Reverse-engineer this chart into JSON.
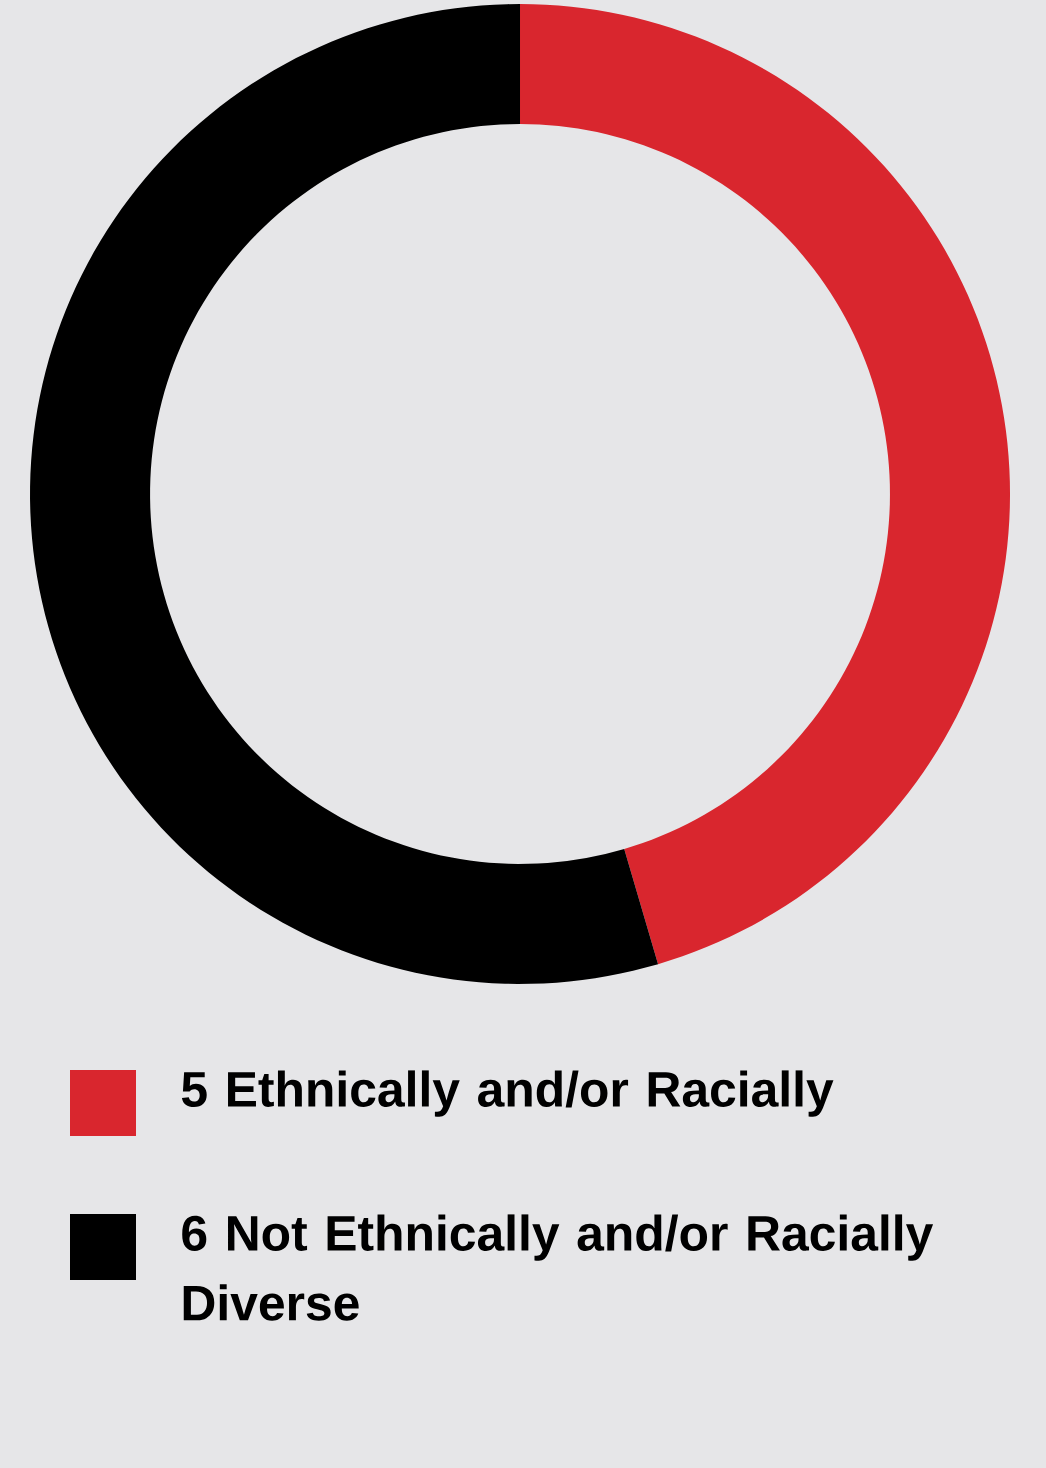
{
  "chart_data": {
    "type": "donut",
    "categories": [
      "5 Ethnically and/or Racially",
      "6 Not Ethnically and/or Racially Diverse"
    ],
    "values": [
      5,
      6
    ],
    "colors": [
      "#d9262e",
      "#000000"
    ],
    "legend": "bottom"
  }
}
